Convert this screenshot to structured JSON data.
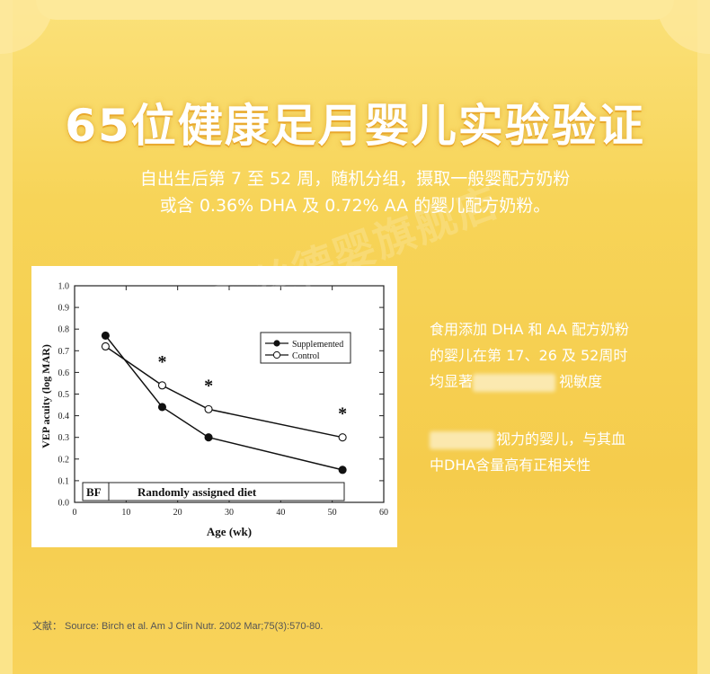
{
  "title": "65位健康足月婴儿实验验证",
  "subtitle": {
    "line1": "自出生后第 7 至 52 周，随机分组，摄取一般婴配方奶粉",
    "line2": "或含 0.36% DHA 及 0.72% AA 的婴儿配方奶粉。"
  },
  "right_text": {
    "p1_line1": "食用添加 DHA 和 AA 配方奶粉",
    "p1_line2": "的婴儿在第 17、26 及 52周时",
    "p1_line3_prefix": "均显著",
    "p1_line3_suffix": "视敏度",
    "p2_line1_suffix": "视力的婴儿，与其血",
    "p2_line2": "中DHA含量高有正相关性"
  },
  "watermark": "京东丝德婴旗舰店",
  "reference": "文献：  Source: Birch et al. Am J Clin Nutr. 2002 Mar;75(3):570-80.",
  "colors": {
    "background": "#f6d35a",
    "title_shadow": "#e9a82c",
    "text": "#ffffff"
  },
  "chart_data": {
    "type": "line",
    "xlabel": "Age (wk)",
    "ylabel": "VEP acuity (log MAR)",
    "xlim": [
      0,
      60
    ],
    "ylim": [
      0.0,
      1.0
    ],
    "x_ticks": [
      "0",
      "10",
      "20",
      "30",
      "40",
      "50",
      "60"
    ],
    "y_ticks": [
      "0.0",
      "0.1",
      "0.2",
      "0.3",
      "0.4",
      "0.5",
      "0.6",
      "0.7",
      "0.8",
      "0.9",
      "1.0"
    ],
    "grid": false,
    "legend_position": "top-right",
    "series": [
      {
        "name": "Supplemented",
        "marker": "filled-circle",
        "x": [
          6,
          17,
          26,
          52
        ],
        "y": [
          0.77,
          0.44,
          0.3,
          0.15
        ]
      },
      {
        "name": "Control",
        "marker": "open-circle",
        "x": [
          6,
          17,
          26,
          52
        ],
        "y": [
          0.72,
          0.54,
          0.43,
          0.3
        ]
      }
    ],
    "significance_marks": [
      {
        "x": 17,
        "label": "*"
      },
      {
        "x": 26,
        "label": "*"
      },
      {
        "x": 52,
        "label": "*"
      }
    ],
    "phase_labels": {
      "bf": "BF",
      "diet": "Randomly assigned diet"
    }
  }
}
